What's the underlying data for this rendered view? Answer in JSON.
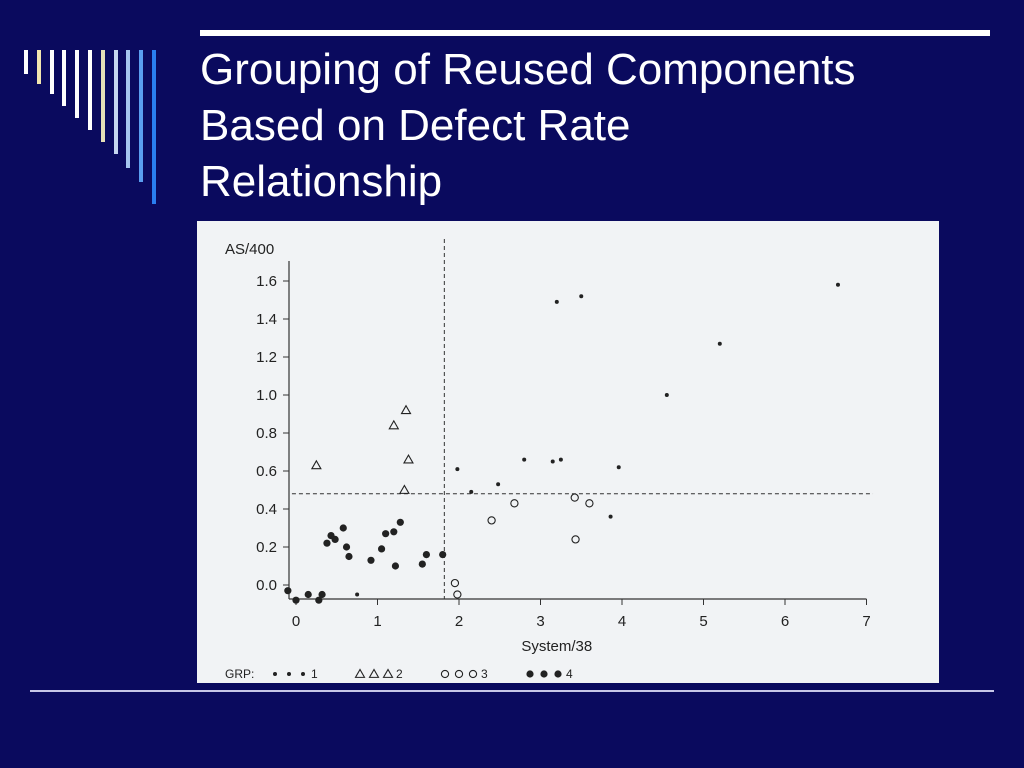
{
  "slide": {
    "title_lines": [
      "Grouping of Reused Components",
      "Based on Defect Rate",
      "Relationship"
    ]
  },
  "colors": {
    "background": "#0a0a5e",
    "title_text": "#ffffff",
    "accent_bars": [
      "#ffffff",
      "#f2e6b0",
      "#ffffff",
      "#ffffff",
      "#ffffff",
      "#ffffff",
      "#e6e0b8",
      "#c6d6f0",
      "#a6c6f0",
      "#5a9ef0",
      "#2a7ef0"
    ]
  },
  "chart_data": {
    "type": "scatter",
    "title": "",
    "xlabel": "System/38",
    "ylabel": "AS/400",
    "xlim": [
      0,
      7
    ],
    "ylim": [
      -0.1,
      1.65
    ],
    "xticks": [
      0,
      1,
      2,
      3,
      4,
      5,
      6,
      7
    ],
    "yticks": [
      0.0,
      0.2,
      0.4,
      0.6,
      0.8,
      1.0,
      1.2,
      1.4,
      1.6
    ],
    "ytick_labels": [
      "0.0",
      "0.2",
      "0.4",
      "0.6",
      "0.8",
      "1.0",
      "1.2",
      "1.4",
      "1.6"
    ],
    "grid": false,
    "reference_lines": {
      "x": 1.82,
      "y": 0.48
    },
    "legend": {
      "placement": "bottom",
      "title": "GRP:",
      "entries": [
        {
          "label": "1",
          "marker": "dot-small"
        },
        {
          "label": "2",
          "marker": "triangle"
        },
        {
          "label": "3",
          "marker": "circle-open"
        },
        {
          "label": "4",
          "marker": "dot-large"
        }
      ]
    },
    "series": [
      {
        "name": "1",
        "marker": "dot-small",
        "points": [
          [
            0.75,
            -0.05
          ],
          [
            1.98,
            0.61
          ],
          [
            2.15,
            0.49
          ],
          [
            2.48,
            0.53
          ],
          [
            2.8,
            0.66
          ],
          [
            3.15,
            0.65
          ],
          [
            3.25,
            0.66
          ],
          [
            3.96,
            0.62
          ],
          [
            3.86,
            0.36
          ],
          [
            4.55,
            1.0
          ],
          [
            5.2,
            1.27
          ],
          [
            6.65,
            1.58
          ],
          [
            3.2,
            1.49
          ],
          [
            3.5,
            1.52
          ]
        ]
      },
      {
        "name": "2",
        "marker": "triangle",
        "points": [
          [
            0.25,
            0.63
          ],
          [
            1.2,
            0.84
          ],
          [
            1.35,
            0.92
          ],
          [
            1.38,
            0.66
          ],
          [
            1.33,
            0.5
          ]
        ]
      },
      {
        "name": "3",
        "marker": "circle-open",
        "points": [
          [
            1.95,
            0.01
          ],
          [
            1.98,
            -0.05
          ],
          [
            2.4,
            0.34
          ],
          [
            2.68,
            0.43
          ],
          [
            3.42,
            0.46
          ],
          [
            3.6,
            0.43
          ],
          [
            3.43,
            0.24
          ]
        ]
      },
      {
        "name": "4",
        "marker": "dot-large",
        "points": [
          [
            -0.1,
            -0.03
          ],
          [
            0.0,
            -0.08
          ],
          [
            0.15,
            -0.05
          ],
          [
            0.28,
            -0.08
          ],
          [
            0.32,
            -0.05
          ],
          [
            0.38,
            0.22
          ],
          [
            0.43,
            0.26
          ],
          [
            0.48,
            0.24
          ],
          [
            0.58,
            0.3
          ],
          [
            0.62,
            0.2
          ],
          [
            0.65,
            0.15
          ],
          [
            0.92,
            0.13
          ],
          [
            1.05,
            0.19
          ],
          [
            1.1,
            0.27
          ],
          [
            1.2,
            0.28
          ],
          [
            1.28,
            0.33
          ],
          [
            1.22,
            0.1
          ],
          [
            1.55,
            0.11
          ],
          [
            1.6,
            0.16
          ],
          [
            1.8,
            0.16
          ]
        ]
      }
    ]
  }
}
